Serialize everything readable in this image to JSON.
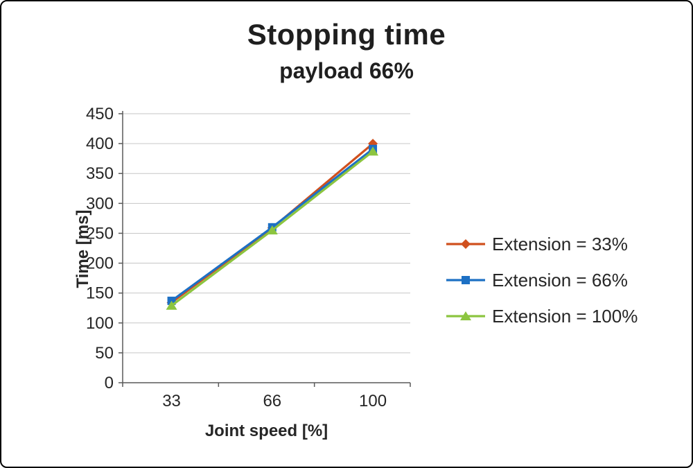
{
  "chart": {
    "title": "Stopping time",
    "subtitle": "payload 66%",
    "ylabel": "Time [ms]",
    "xlabel": "Joint speed [%]"
  },
  "chart_data": {
    "type": "line",
    "title": "Stopping time",
    "subtitle": "payload 66%",
    "xlabel": "Joint speed [%]",
    "ylabel": "Time [ms]",
    "categories": [
      "33",
      "66",
      "100"
    ],
    "series": [
      {
        "name": "Extension = 33%",
        "marker": "diamond",
        "color": "#d0501e",
        "values": [
          134,
          259,
          400
        ]
      },
      {
        "name": "Extension = 66%",
        "marker": "square",
        "color": "#1d70c4",
        "values": [
          137,
          260,
          391
        ]
      },
      {
        "name": "Extension = 100%",
        "marker": "triangle",
        "color": "#8cc540",
        "values": [
          129,
          255,
          387
        ]
      }
    ],
    "ylim": [
      0,
      450
    ],
    "ytick_step": 50,
    "grid": true,
    "legend_position": "right",
    "colors": {
      "gridline": "#c6c6c6",
      "axis": "#595959",
      "tick_text": "#262626"
    }
  }
}
